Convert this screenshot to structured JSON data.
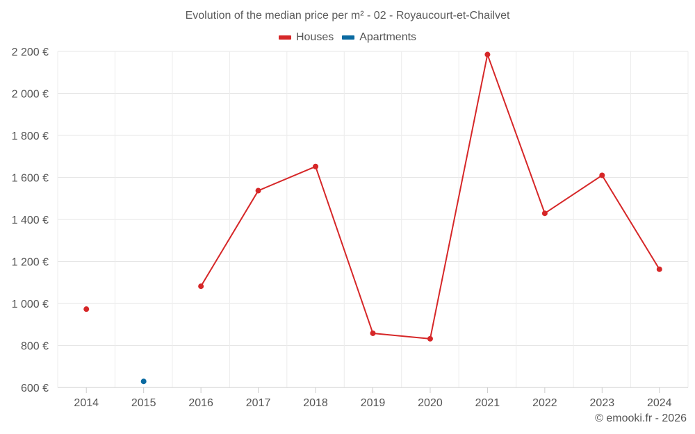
{
  "chart_data": {
    "type": "line",
    "title": "Evolution of the median price per m² - 02 - Royaucourt-et-Chailvet",
    "categories": [
      "2014",
      "2015",
      "2016",
      "2017",
      "2018",
      "2019",
      "2020",
      "2021",
      "2022",
      "2023",
      "2024"
    ],
    "ylim": [
      600,
      2200
    ],
    "yticks": [
      600,
      800,
      1000,
      1200,
      1400,
      1600,
      1800,
      2000,
      2200
    ],
    "ytick_labels": [
      "600 €",
      "800 €",
      "1 000 €",
      "1 200 €",
      "1 400 €",
      "1 600 €",
      "1 800 €",
      "2 000 €",
      "2 200 €"
    ],
    "xlabel": "",
    "ylabel": "",
    "grid": true,
    "legend_position": "top-center",
    "series": [
      {
        "name": "Houses",
        "color": "#d62728",
        "values": [
          973,
          null,
          1082,
          1537,
          1652,
          858,
          832,
          2185,
          1429,
          1610,
          1163
        ]
      },
      {
        "name": "Apartments",
        "color": "#0a6aa1",
        "values": [
          null,
          629,
          null,
          null,
          null,
          null,
          null,
          null,
          null,
          null,
          null
        ]
      }
    ]
  },
  "credit": "© emooki.fr - 2026"
}
